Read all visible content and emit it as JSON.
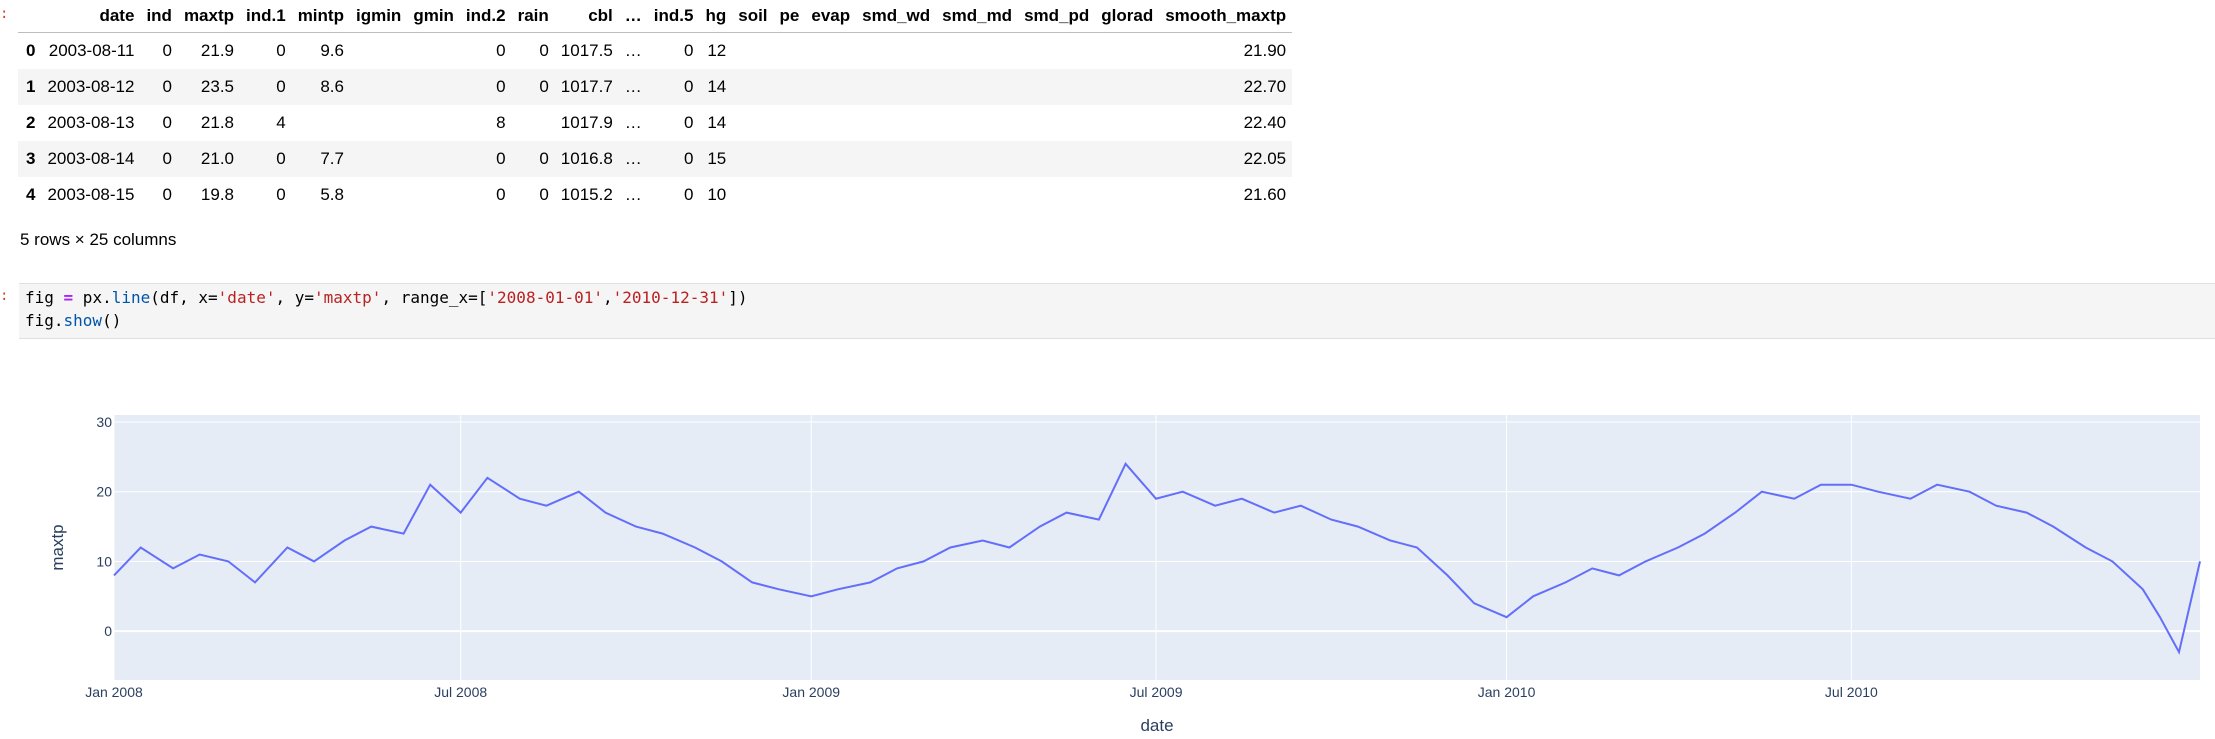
{
  "prompts": {
    "colon": ":"
  },
  "dataframe": {
    "columns": [
      "date",
      "ind",
      "maxtp",
      "ind.1",
      "mintp",
      "igmin",
      "gmin",
      "ind.2",
      "rain",
      "cbl",
      "…",
      "ind.5",
      "hg",
      "soil",
      "pe",
      "evap",
      "smd_wd",
      "smd_md",
      "smd_pd",
      "glorad",
      "smooth_maxtp"
    ],
    "rows": [
      {
        "index": "0",
        "cells": [
          "2003-08-11",
          "0",
          "21.9",
          "0",
          "9.6",
          "",
          "",
          "0",
          "0",
          "1017.5",
          "…",
          "0",
          "12",
          "",
          "",
          "",
          "",
          "",
          "",
          "",
          "21.90"
        ]
      },
      {
        "index": "1",
        "cells": [
          "2003-08-12",
          "0",
          "23.5",
          "0",
          "8.6",
          "",
          "",
          "0",
          "0",
          "1017.7",
          "…",
          "0",
          "14",
          "",
          "",
          "",
          "",
          "",
          "",
          "",
          "22.70"
        ]
      },
      {
        "index": "2",
        "cells": [
          "2003-08-13",
          "0",
          "21.8",
          "4",
          "",
          "",
          "",
          "8",
          "",
          "1017.9",
          "…",
          "0",
          "14",
          "",
          "",
          "",
          "",
          "",
          "",
          "",
          "22.40"
        ]
      },
      {
        "index": "3",
        "cells": [
          "2003-08-14",
          "0",
          "21.0",
          "0",
          "7.7",
          "",
          "",
          "0",
          "0",
          "1016.8",
          "…",
          "0",
          "15",
          "",
          "",
          "",
          "",
          "",
          "",
          "",
          "22.05"
        ]
      },
      {
        "index": "4",
        "cells": [
          "2003-08-15",
          "0",
          "19.8",
          "0",
          "5.8",
          "",
          "",
          "0",
          "0",
          "1015.2",
          "…",
          "0",
          "10",
          "",
          "",
          "",
          "",
          "",
          "",
          "",
          "21.60"
        ]
      }
    ],
    "shape_note": "5 rows × 25 columns"
  },
  "code": {
    "line1": "fig = px.line(df, x='date', y='maxtp', range_x=['2008-01-01','2010-12-31'])",
    "line2": "fig.show()"
  },
  "colors": {
    "line": "#636efa",
    "plot_bg": "#e5ecf6",
    "grid": "#ffffff",
    "axis_text": "#2a3f5f"
  },
  "chart_data": {
    "type": "line",
    "xlabel": "date",
    "ylabel": "maxtp",
    "xlim": [
      "2008-01-01",
      "2010-12-31"
    ],
    "ylim": [
      -7,
      31
    ],
    "x_ticks": [
      "Jan 2008",
      "Jul 2008",
      "Jan 2009",
      "Jul 2009",
      "Jan 2010",
      "Jul 2010"
    ],
    "y_ticks": [
      "30",
      "20",
      "10",
      "0"
    ],
    "grid": true,
    "series": [
      {
        "x": [
          "2008-01-01",
          "2008-01-15",
          "2008-02-01",
          "2008-02-15",
          "2008-03-01",
          "2008-03-15",
          "2008-04-01",
          "2008-04-15",
          "2008-05-01",
          "2008-05-15",
          "2008-06-01",
          "2008-06-15",
          "2008-07-01",
          "2008-07-15",
          "2008-08-01",
          "2008-08-15",
          "2008-09-01",
          "2008-09-15",
          "2008-10-01",
          "2008-10-15",
          "2008-11-01",
          "2008-11-15",
          "2008-12-01",
          "2008-12-15",
          "2009-01-01",
          "2009-01-15",
          "2009-02-01",
          "2009-02-15",
          "2009-03-01",
          "2009-03-15",
          "2009-04-01",
          "2009-04-15",
          "2009-05-01",
          "2009-05-15",
          "2009-06-01",
          "2009-06-15",
          "2009-07-01",
          "2009-07-15",
          "2009-08-01",
          "2009-08-15",
          "2009-09-01",
          "2009-09-15",
          "2009-10-01",
          "2009-10-15",
          "2009-11-01",
          "2009-11-15",
          "2009-12-01",
          "2009-12-15",
          "2010-01-01",
          "2010-01-15",
          "2010-02-01",
          "2010-02-15",
          "2010-03-01",
          "2010-03-15",
          "2010-04-01",
          "2010-04-15",
          "2010-05-01",
          "2010-05-15",
          "2010-06-01",
          "2010-06-15",
          "2010-07-01",
          "2010-07-15",
          "2010-08-01",
          "2010-08-15",
          "2010-09-01",
          "2010-09-15",
          "2010-10-01",
          "2010-10-15",
          "2010-11-01",
          "2010-11-15",
          "2010-12-01",
          "2010-12-10",
          "2010-12-20",
          "2010-12-31"
        ],
        "y": [
          8,
          12,
          9,
          11,
          10,
          7,
          12,
          10,
          13,
          15,
          14,
          21,
          17,
          22,
          19,
          18,
          20,
          17,
          15,
          14,
          12,
          10,
          7,
          6,
          5,
          6,
          7,
          9,
          10,
          12,
          13,
          12,
          15,
          17,
          16,
          24,
          19,
          20,
          18,
          19,
          17,
          18,
          16,
          15,
          13,
          12,
          8,
          4,
          2,
          5,
          7,
          9,
          8,
          10,
          12,
          14,
          17,
          20,
          19,
          21,
          21,
          20,
          19,
          21,
          20,
          18,
          17,
          15,
          12,
          10,
          6,
          2,
          -3,
          10
        ]
      }
    ]
  }
}
